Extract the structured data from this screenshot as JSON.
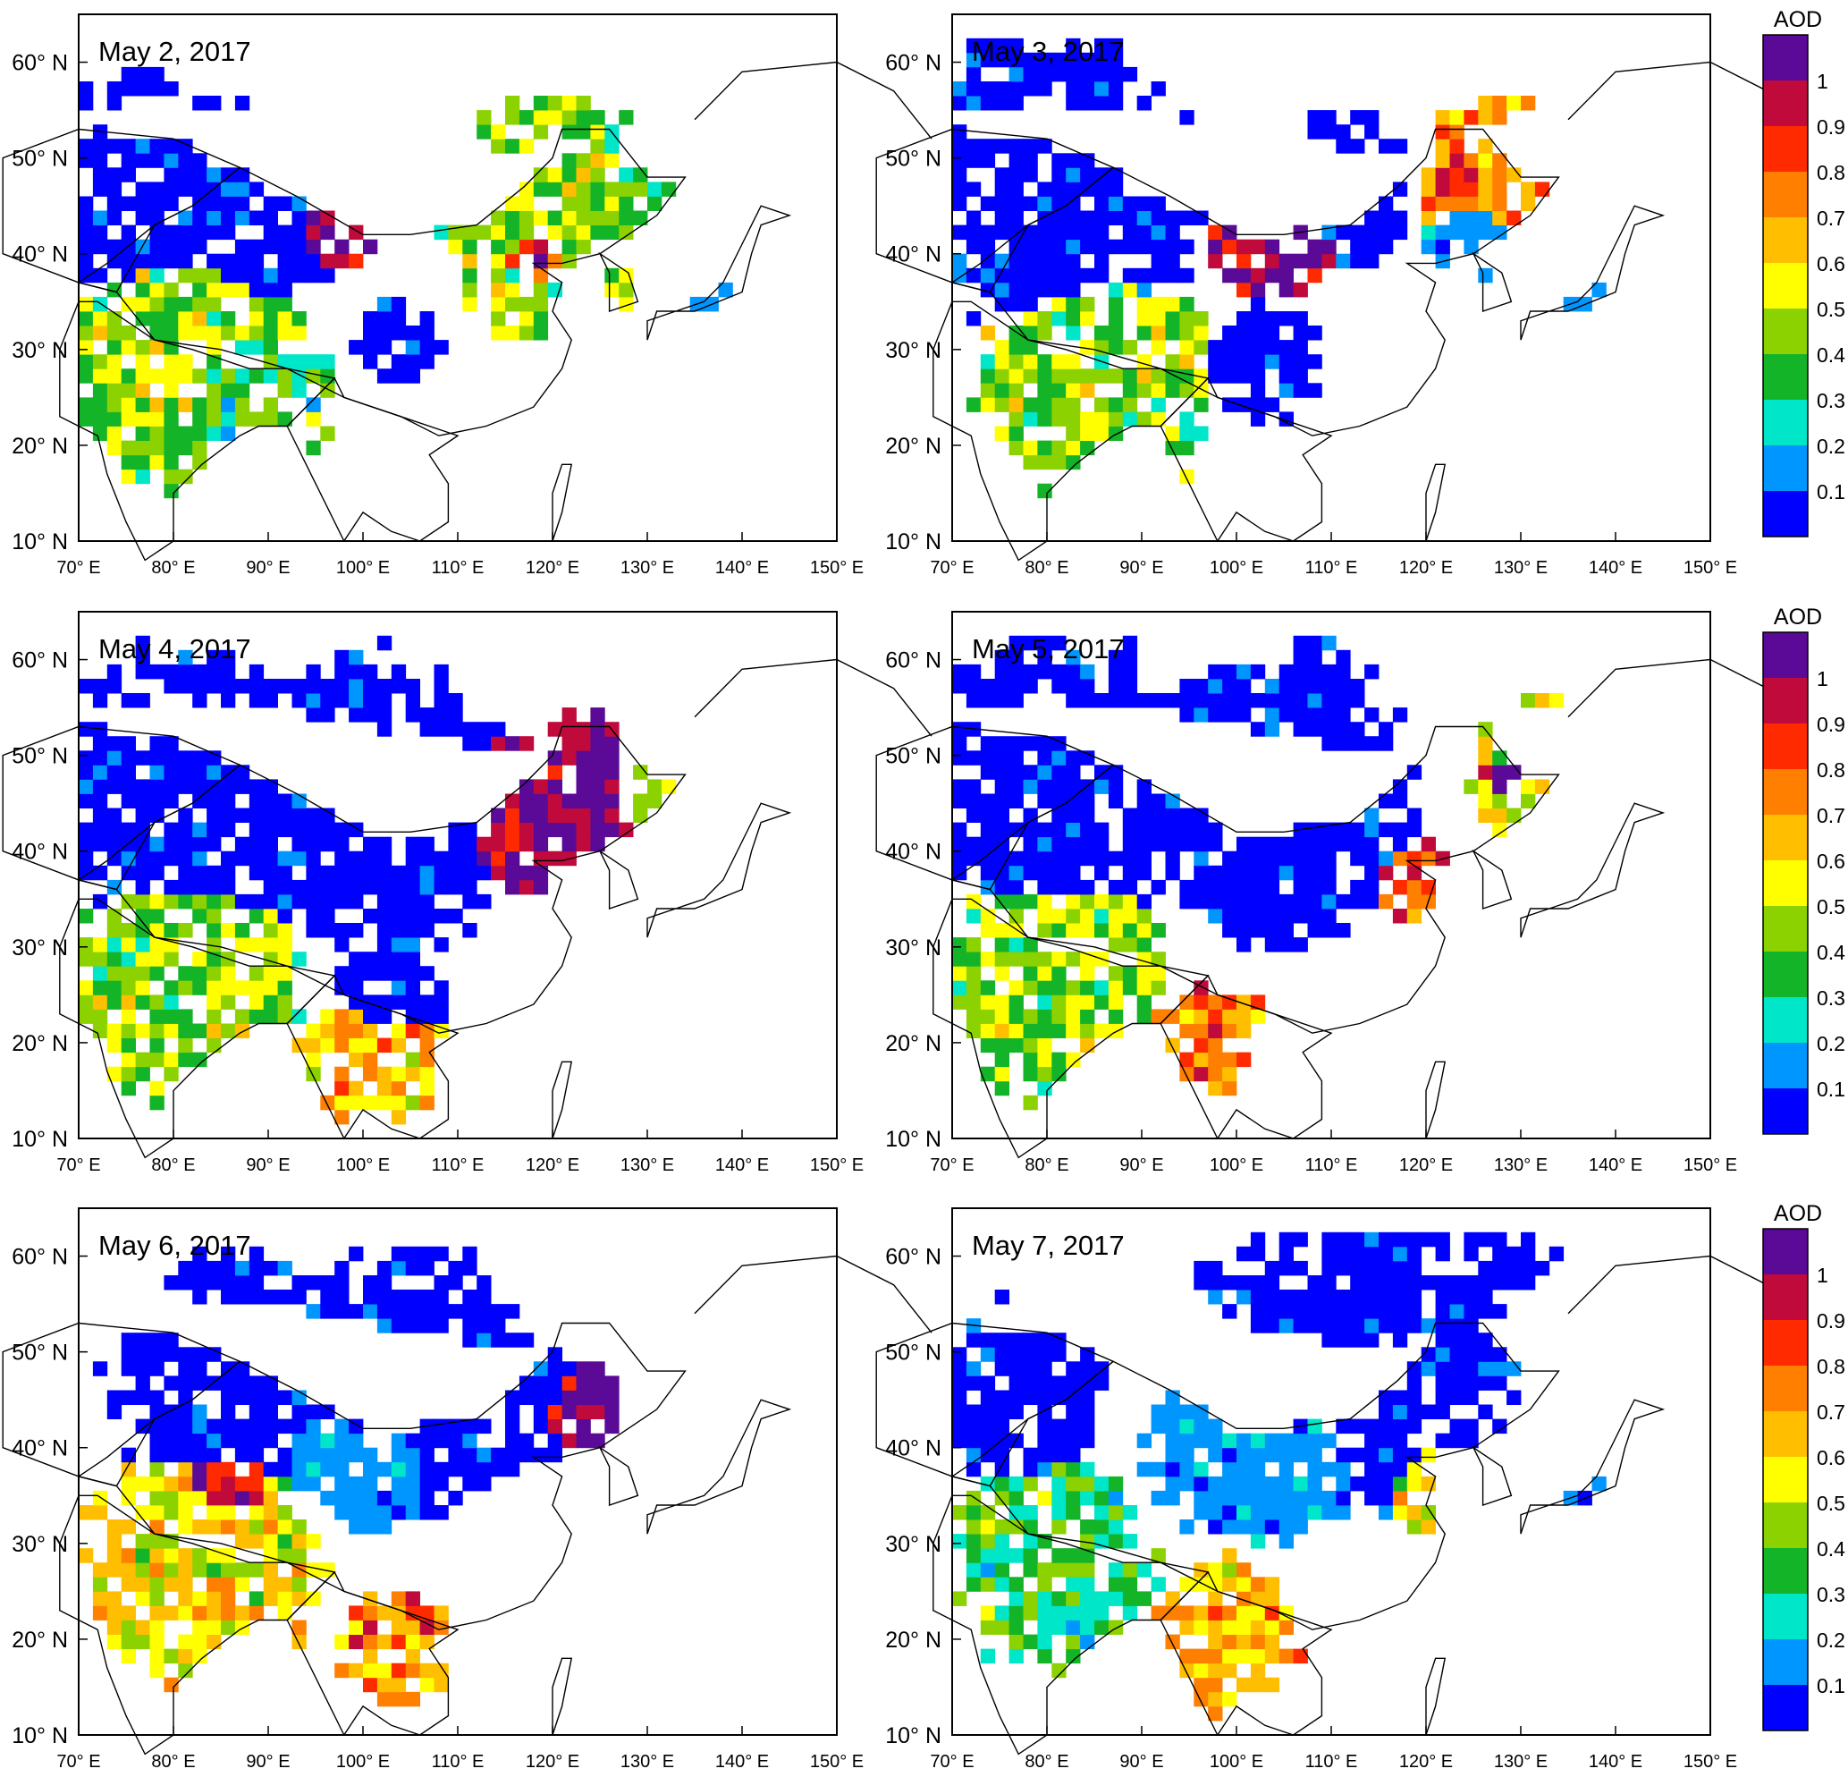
{
  "panels": [
    {
      "date": "May 2, 2017"
    },
    {
      "date": "May 3, 2017"
    },
    {
      "date": "May 4, 2017"
    },
    {
      "date": "May 5, 2017"
    },
    {
      "date": "May 6, 2017"
    },
    {
      "date": "May 7, 2017"
    }
  ],
  "axes": {
    "lat_ticks": [
      "10° N",
      "20° N",
      "30° N",
      "40° N",
      "50° N",
      "60° N"
    ],
    "lon_ticks": [
      "70° E",
      "80° E",
      "90° E",
      "100° E",
      "110° E",
      "120° E",
      "130° E",
      "140° E",
      "150° E"
    ],
    "lat_range": [
      10,
      65
    ],
    "lon_range": [
      70,
      150
    ]
  },
  "colorbar": {
    "title": "AOD",
    "labels": [
      "1",
      "0.9",
      "0.8",
      "0.7",
      "0.6",
      "0.5",
      "0.4",
      "0.3",
      "0.2",
      "0.1"
    ],
    "colors": [
      "#5a0a96",
      "#c00a3c",
      "#ff2a00",
      "#ff7f00",
      "#ffbf00",
      "#ffff00",
      "#8cd200",
      "#14b428",
      "#00e6c8",
      "#0096ff",
      "#0000ff"
    ]
  },
  "map_data": {
    "variable": "AOD",
    "region": {
      "lon": [
        70,
        150
      ],
      "lat": [
        10,
        65
      ]
    }
  }
}
